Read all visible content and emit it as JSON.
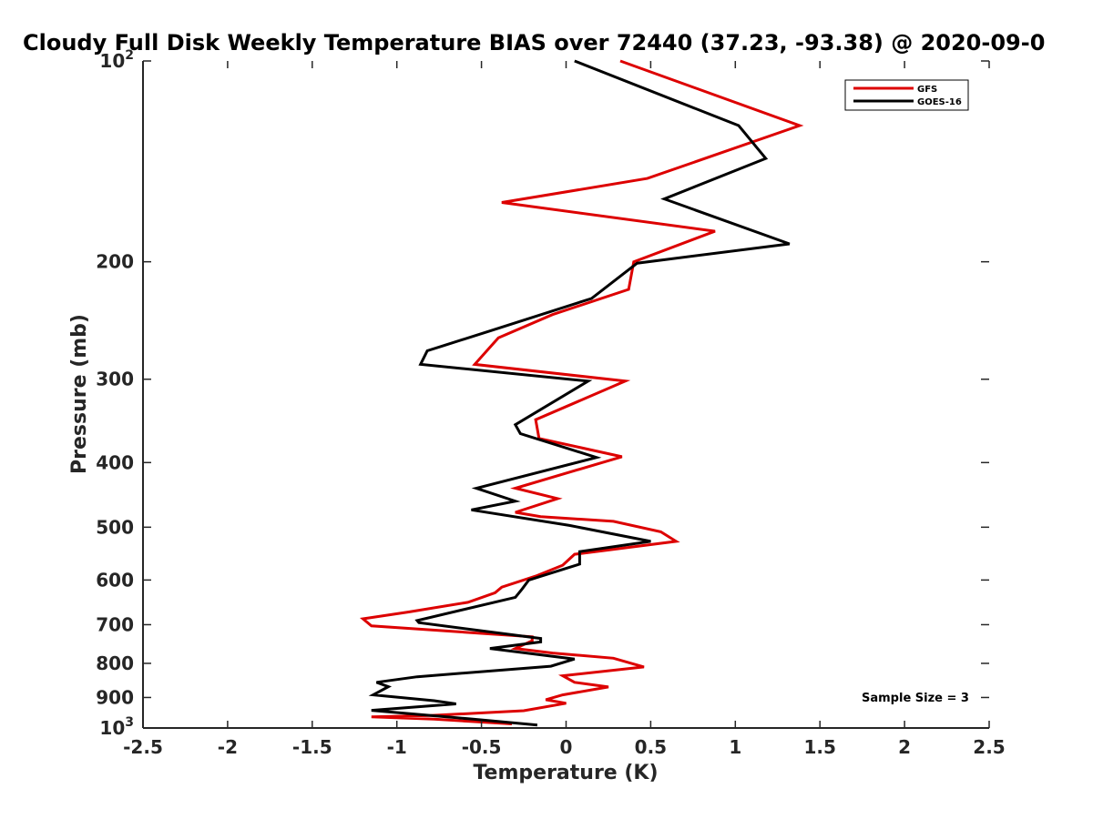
{
  "chart_data": {
    "type": "line",
    "title": "Cloudy Full Disk Weekly Temperature BIAS over 72440 (37.23, -93.38) @ 2020-09-0",
    "xlabel": "Temperature (K)",
    "ylabel": "Pressure (mb)",
    "xlim": [
      -2.5,
      2.5
    ],
    "ylim": [
      100,
      1000
    ],
    "y_scale": "log",
    "y_reversed": true,
    "grid": false,
    "legend_position": "top-right",
    "x_ticks": [
      "-2.5",
      "-2",
      "-1.5",
      "-1",
      "-0.5",
      "0",
      "0.5",
      "1",
      "1.5",
      "2",
      "2.5"
    ],
    "x_tick_values": [
      -2.5,
      -2,
      -1.5,
      -1,
      -0.5,
      0,
      0.5,
      1,
      1.5,
      2,
      2.5
    ],
    "y_ticks": [
      {
        "value": 100,
        "base": "10",
        "exp": "2"
      },
      {
        "value": 200,
        "label": "200"
      },
      {
        "value": 300,
        "label": "300"
      },
      {
        "value": 400,
        "label": "400"
      },
      {
        "value": 500,
        "label": "500"
      },
      {
        "value": 600,
        "label": "600"
      },
      {
        "value": 700,
        "label": "700"
      },
      {
        "value": 800,
        "label": "800"
      },
      {
        "value": 900,
        "label": "900"
      },
      {
        "value": 1000,
        "base": "10",
        "exp": "3"
      }
    ],
    "annotation": "Sample Size = 3",
    "series": [
      {
        "name": "GFS",
        "color": "#dd0000",
        "points": [
          [
            0.32,
            100
          ],
          [
            1.38,
            125
          ],
          [
            0.48,
            150
          ],
          [
            -0.38,
            163
          ],
          [
            0.88,
            180
          ],
          [
            0.4,
            200
          ],
          [
            0.37,
            220
          ],
          [
            -0.08,
            240
          ],
          [
            -0.4,
            260
          ],
          [
            -0.54,
            285
          ],
          [
            0.35,
            302
          ],
          [
            -0.18,
            345
          ],
          [
            -0.16,
            368
          ],
          [
            0.33,
            392
          ],
          [
            -0.3,
            437
          ],
          [
            -0.05,
            453
          ],
          [
            -0.3,
            475
          ],
          [
            -0.15,
            482
          ],
          [
            0.28,
            490
          ],
          [
            0.56,
            508
          ],
          [
            0.65,
            525
          ],
          [
            0.05,
            549
          ],
          [
            -0.02,
            570
          ],
          [
            -0.18,
            592
          ],
          [
            -0.38,
            615
          ],
          [
            -0.42,
            627
          ],
          [
            -0.58,
            648
          ],
          [
            -0.93,
            670
          ],
          [
            -1.2,
            686
          ],
          [
            -1.15,
            703
          ],
          [
            -0.2,
            730
          ],
          [
            -0.2,
            740
          ],
          [
            -0.3,
            760
          ],
          [
            -0.08,
            772
          ],
          [
            0.28,
            786
          ],
          [
            0.46,
            810
          ],
          [
            -0.02,
            835
          ],
          [
            0.05,
            854
          ],
          [
            0.25,
            868
          ],
          [
            -0.02,
            892
          ],
          [
            -0.12,
            907
          ],
          [
            0.0,
            918
          ],
          [
            -0.25,
            942
          ],
          [
            -0.8,
            958
          ],
          [
            -1.15,
            962
          ],
          [
            -0.78,
            970
          ],
          [
            -0.32,
            986
          ]
        ]
      },
      {
        "name": "GOES-16",
        "color": "#000000",
        "points": [
          [
            0.05,
            100
          ],
          [
            1.02,
            125
          ],
          [
            1.18,
            140
          ],
          [
            0.58,
            161
          ],
          [
            1.32,
            188
          ],
          [
            0.42,
            201
          ],
          [
            0.15,
            227
          ],
          [
            -0.45,
            254
          ],
          [
            -0.82,
            272
          ],
          [
            -0.86,
            285
          ],
          [
            0.13,
            302
          ],
          [
            -0.3,
            351
          ],
          [
            -0.27,
            362
          ],
          [
            0.18,
            393
          ],
          [
            -0.53,
            437
          ],
          [
            -0.3,
            457
          ],
          [
            -0.56,
            471
          ],
          [
            0.02,
            497
          ],
          [
            0.5,
            525
          ],
          [
            0.08,
            544
          ],
          [
            0.08,
            568
          ],
          [
            -0.22,
            600
          ],
          [
            -0.26,
            619
          ],
          [
            -0.3,
            637
          ],
          [
            -0.88,
            690
          ],
          [
            -0.87,
            695
          ],
          [
            -0.15,
            734
          ],
          [
            -0.15,
            743
          ],
          [
            -0.45,
            760
          ],
          [
            0.05,
            788
          ],
          [
            -0.09,
            808
          ],
          [
            -0.88,
            838
          ],
          [
            -1.12,
            854
          ],
          [
            -1.05,
            867
          ],
          [
            -1.14,
            892
          ],
          [
            -0.78,
            910
          ],
          [
            -0.65,
            920
          ],
          [
            -1.15,
            941
          ],
          [
            -0.55,
            970
          ],
          [
            -0.17,
            990
          ]
        ]
      }
    ]
  }
}
